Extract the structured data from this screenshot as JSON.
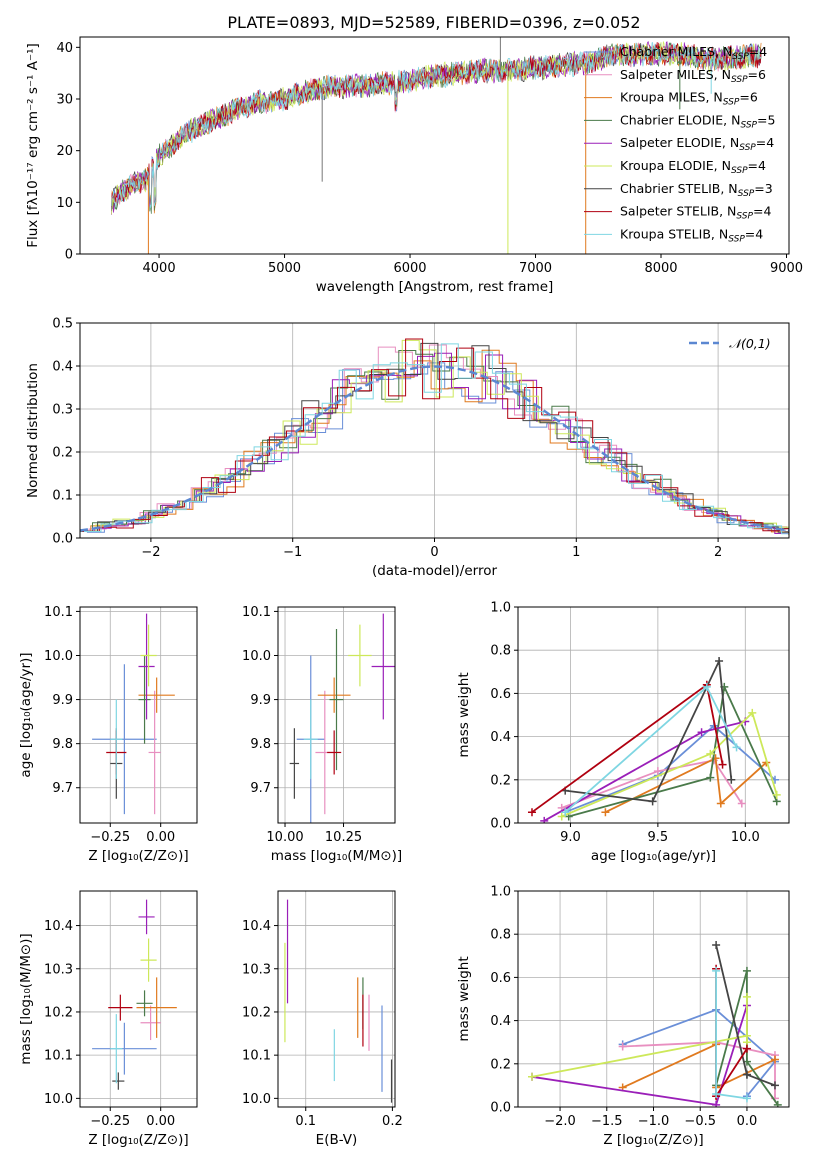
{
  "figure_title": "PLATE=0893, MJD=52589, FIBERID=0396, z=0.052",
  "models": [
    {
      "name": "Chabrier MILES",
      "nssp": "4",
      "color": "#6a8fd8"
    },
    {
      "name": "Salpeter MILES",
      "nssp": "6",
      "color": "#e88fc0"
    },
    {
      "name": "Kroupa MILES",
      "nssp": "6",
      "color": "#e07a1f"
    },
    {
      "name": "Chabrier ELODIE",
      "nssp": "5",
      "color": "#4a7a4a"
    },
    {
      "name": "Salpeter ELODIE",
      "nssp": "4",
      "color": "#9a1fb8"
    },
    {
      "name": "Kroupa ELODIE",
      "nssp": "4",
      "color": "#cde85a"
    },
    {
      "name": "Chabrier STELIB",
      "nssp": "3",
      "color": "#444444"
    },
    {
      "name": "Salpeter STELIB",
      "nssp": "4",
      "color": "#b00010"
    },
    {
      "name": "Kroupa STELIB",
      "nssp": "4",
      "color": "#7fd6e2"
    }
  ],
  "chart_data": [
    {
      "id": "spectrum",
      "type": "line",
      "xlabel": "wavelength [Angstrom, rest frame]",
      "ylabel": "Flux [fλ10⁻¹⁷ erg cm⁻² s⁻¹ A⁻¹]",
      "xlim": [
        3370,
        9020
      ],
      "ylim": [
        0,
        42
      ],
      "xticks": [
        4000,
        5000,
        6000,
        7000,
        8000,
        9000
      ],
      "yticks": [
        0,
        10,
        20,
        30,
        40
      ],
      "continuum_x": [
        3620,
        3700,
        3800,
        3900,
        4000,
        4100,
        4200,
        4300,
        4400,
        4500,
        4600,
        4700,
        4800,
        4900,
        5000,
        5200,
        5400,
        5600,
        5800,
        6000,
        6200,
        6400,
        6600,
        6800,
        7000,
        7200,
        7400,
        7600,
        7800,
        8000,
        8200,
        8400,
        8600,
        8800
      ],
      "continuum_y": [
        10,
        12,
        13.5,
        14.5,
        19,
        21,
        23,
        24.5,
        25.5,
        26.5,
        28,
        28.5,
        29.5,
        29.5,
        30,
        31.5,
        32.5,
        32.5,
        33,
        33.5,
        34.5,
        35,
        35.5,
        35.5,
        36,
        36.5,
        37,
        38.5,
        38.5,
        38.8,
        38.5,
        37.5,
        38,
        38.5
      ],
      "grid": false,
      "legend": "right"
    },
    {
      "id": "residuals",
      "type": "histogram",
      "xlabel": "(data-model)/error",
      "ylabel": "Normed distribution",
      "xlim": [
        -2.5,
        2.5
      ],
      "ylim": [
        0,
        0.5
      ],
      "xticks": [
        -2,
        -1,
        0,
        1,
        2
      ],
      "yticks": [
        0,
        0.1,
        0.2,
        0.3,
        0.4,
        0.5
      ],
      "bin_width": 0.12,
      "reference_label": "𝒩(0,1)",
      "reference_color": "#5b87d1",
      "grid": true
    },
    {
      "id": "age_vs_Z",
      "type": "errorbar",
      "xlabel": "Z [log₁₀(Z/Z⊙)]",
      "ylabel": "age  [log₁₀(age/yr)]",
      "xlim": [
        -0.4,
        0.18
      ],
      "ylim": [
        9.62,
        10.11
      ],
      "xticks": [
        -0.25,
        0.0
      ],
      "yticks": [
        9.7,
        9.8,
        9.9,
        10.0,
        10.1
      ],
      "points": [
        {
          "x": -0.18,
          "y": 9.81,
          "xerr": 0.16,
          "yerr": 0.17
        },
        {
          "x": -0.03,
          "y": 9.78,
          "xerr": 0.03,
          "yerr": 0.14
        },
        {
          "x": -0.02,
          "y": 9.91,
          "xerr": 0.09,
          "yerr": 0.04
        },
        {
          "x": -0.08,
          "y": 9.9,
          "xerr": 0.03,
          "yerr": 0.1
        },
        {
          "x": -0.07,
          "y": 9.975,
          "xerr": 0.04,
          "yerr": 0.12
        },
        {
          "x": -0.06,
          "y": 10.0,
          "xerr": 0.04,
          "yerr": 0.07
        },
        {
          "x": -0.22,
          "y": 9.755,
          "xerr": 0.03,
          "yerr": 0.08
        },
        {
          "x": -0.22,
          "y": 9.78,
          "xerr": 0.05,
          "yerr": 0.05
        },
        {
          "x": -0.22,
          "y": 9.81,
          "xerr": 0.03,
          "yerr": 0.09
        }
      ],
      "grid": true
    },
    {
      "id": "age_vs_mass",
      "type": "errorbar",
      "xlabel": "mass [log₁₀(M/M⊙)]",
      "ylabel": "",
      "xlim": [
        9.97,
        10.47
      ],
      "ylim": [
        9.62,
        10.11
      ],
      "xticks": [
        10.0,
        10.25
      ],
      "yticks": [
        9.7,
        9.8,
        9.9,
        10.0,
        10.1
      ],
      "points": [
        {
          "x": 10.11,
          "y": 9.81,
          "xerr": 0.06,
          "yerr": 0.19
        },
        {
          "x": 10.17,
          "y": 9.78,
          "xerr": 0.04,
          "yerr": 0.14
        },
        {
          "x": 10.21,
          "y": 9.91,
          "xerr": 0.07,
          "yerr": 0.04
        },
        {
          "x": 10.22,
          "y": 9.9,
          "xerr": 0.03,
          "yerr": 0.16
        },
        {
          "x": 10.42,
          "y": 9.975,
          "xerr": 0.05,
          "yerr": 0.12
        },
        {
          "x": 10.32,
          "y": 10.0,
          "xerr": 0.05,
          "yerr": 0.07
        },
        {
          "x": 10.04,
          "y": 9.755,
          "xerr": 0.02,
          "yerr": 0.08
        },
        {
          "x": 10.21,
          "y": 9.78,
          "xerr": 0.03,
          "yerr": 0.05
        },
        {
          "x": 10.11,
          "y": 9.81,
          "xerr": 0.03,
          "yerr": 0.09
        }
      ],
      "grid": true
    },
    {
      "id": "weight_vs_age",
      "type": "line",
      "xlabel": "age  [log₁₀(age/yr)]",
      "ylabel": "mass weight",
      "xlim": [
        8.7,
        10.25
      ],
      "ylim": [
        0,
        1
      ],
      "xticks": [
        9.0,
        9.5,
        10.0
      ],
      "yticks": [
        0,
        0.2,
        0.4,
        0.6,
        0.8,
        1.0
      ],
      "series": [
        {
          "x": [
            8.97,
            9.5,
            9.82,
            10.17
          ],
          "y": [
            0.05,
            0.22,
            0.45,
            0.2
          ]
        },
        {
          "x": [
            8.95,
            9.5,
            9.82,
            9.98
          ],
          "y": [
            0.07,
            0.24,
            0.29,
            0.09
          ]
        },
        {
          "x": [
            9.2,
            9.83,
            9.86,
            10.12
          ],
          "y": [
            0.05,
            0.3,
            0.09,
            0.28
          ]
        },
        {
          "x": [
            8.99,
            9.8,
            9.88,
            10.18
          ],
          "y": [
            0.03,
            0.21,
            0.63,
            0.1
          ]
        },
        {
          "x": [
            8.85,
            9.75,
            10.0
          ],
          "y": [
            0.01,
            0.42,
            0.47
          ]
        },
        {
          "x": [
            8.95,
            9.8,
            10.04,
            10.18
          ],
          "y": [
            0.03,
            0.32,
            0.51,
            0.13
          ]
        },
        {
          "x": [
            8.97,
            9.47,
            9.85,
            9.92
          ],
          "y": [
            0.15,
            0.1,
            0.75,
            0.2
          ]
        },
        {
          "x": [
            8.78,
            9.78,
            9.87
          ],
          "y": [
            0.05,
            0.64,
            0.27
          ]
        },
        {
          "x": [
            8.97,
            9.78,
            9.95
          ],
          "y": [
            0.05,
            0.63,
            0.35
          ]
        }
      ],
      "grid": true
    },
    {
      "id": "mass_vs_Z",
      "type": "errorbar",
      "xlabel": "Z [log₁₀(Z/Z⊙)]",
      "ylabel": "mass [log₁₀(M/M⊙)]",
      "xlim": [
        -0.4,
        0.18
      ],
      "ylim": [
        9.98,
        10.48
      ],
      "xticks": [
        -0.25,
        0.0
      ],
      "yticks": [
        10.0,
        10.1,
        10.2,
        10.3,
        10.4
      ],
      "points": [
        {
          "x": -0.18,
          "y": 10.115,
          "xerr": 0.16,
          "yerr": 0.06
        },
        {
          "x": -0.05,
          "y": 10.175,
          "xerr": 0.05,
          "yerr": 0.04
        },
        {
          "x": -0.02,
          "y": 10.21,
          "xerr": 0.1,
          "yerr": 0.07
        },
        {
          "x": -0.08,
          "y": 10.22,
          "xerr": 0.04,
          "yerr": 0.03
        },
        {
          "x": -0.07,
          "y": 10.42,
          "xerr": 0.04,
          "yerr": 0.04
        },
        {
          "x": -0.06,
          "y": 10.32,
          "xerr": 0.04,
          "yerr": 0.05
        },
        {
          "x": -0.21,
          "y": 10.04,
          "xerr": 0.03,
          "yerr": 0.02
        },
        {
          "x": -0.2,
          "y": 10.21,
          "xerr": 0.06,
          "yerr": 0.03
        },
        {
          "x": -0.22,
          "y": 10.115,
          "xerr": 0.03,
          "yerr": 0.08
        }
      ],
      "grid": true
    },
    {
      "id": "mass_vs_ebv",
      "type": "errorbar",
      "xlabel": "E(B-V)",
      "ylabel": "",
      "xlim": [
        0.068,
        0.203
      ],
      "ylim": [
        9.98,
        10.48
      ],
      "xticks": [
        0.1,
        0.2
      ],
      "yticks": [
        10.0,
        10.1,
        10.2,
        10.3,
        10.4
      ],
      "points": [
        {
          "x": 0.188,
          "y": 10.115,
          "yerr": 0.1
        },
        {
          "x": 0.173,
          "y": 10.175,
          "yerr": 0.065
        },
        {
          "x": 0.16,
          "y": 10.21,
          "yerr": 0.07
        },
        {
          "x": 0.166,
          "y": 10.22,
          "yerr": 0.06
        },
        {
          "x": 0.079,
          "y": 10.34,
          "yerr": 0.12
        },
        {
          "x": 0.076,
          "y": 10.245,
          "yerr": 0.115
        },
        {
          "x": 0.199,
          "y": 10.04,
          "yerr": 0.05
        },
        {
          "x": 0.166,
          "y": 10.18,
          "yerr": 0.06
        },
        {
          "x": 0.133,
          "y": 10.1,
          "yerr": 0.06
        }
      ],
      "grid": true
    },
    {
      "id": "weight_vs_Z",
      "type": "line",
      "xlabel": "Z [log₁₀(Z/Z⊙)]",
      "ylabel": "mass weight",
      "xlim": [
        -2.45,
        0.45
      ],
      "ylim": [
        0,
        1
      ],
      "xticks": [
        -2.0,
        -1.5,
        -1.0,
        -0.5,
        0.0
      ],
      "yticks": [
        0,
        0.2,
        0.4,
        0.6,
        0.8,
        1.0
      ],
      "series": [
        {
          "x": [
            -1.33,
            -0.33,
            0.3,
            0.0
          ],
          "y": [
            0.29,
            0.45,
            0.21,
            0.05
          ]
        },
        {
          "x": [
            -1.33,
            -0.33,
            0.3,
            0.3
          ],
          "y": [
            0.28,
            0.3,
            0.24,
            0.04
          ]
        },
        {
          "x": [
            -1.33,
            -0.33,
            -0.33,
            0.3
          ],
          "y": [
            0.09,
            0.29,
            0.09,
            0.22
          ]
        },
        {
          "x": [
            -0.33,
            0.0,
            0.0,
            0.33
          ],
          "y": [
            0.1,
            0.63,
            0.21,
            0.01
          ]
        },
        {
          "x": [
            -2.3,
            -0.33,
            0.0
          ],
          "y": [
            0.14,
            0.01,
            0.47
          ]
        },
        {
          "x": [
            -2.3,
            0.0,
            0.0,
            0.0
          ],
          "y": [
            0.14,
            0.33,
            0.51,
            0.3
          ]
        },
        {
          "x": [
            -0.33,
            0.0,
            0.0,
            0.3
          ],
          "y": [
            0.75,
            0.15,
            0.15,
            0.1
          ]
        },
        {
          "x": [
            -0.33,
            -0.33,
            0.0
          ],
          "y": [
            0.64,
            0.05,
            0.27
          ]
        },
        {
          "x": [
            -0.33,
            -0.33,
            0.0
          ],
          "y": [
            0.63,
            0.06,
            0.04
          ]
        }
      ],
      "grid": true
    }
  ]
}
